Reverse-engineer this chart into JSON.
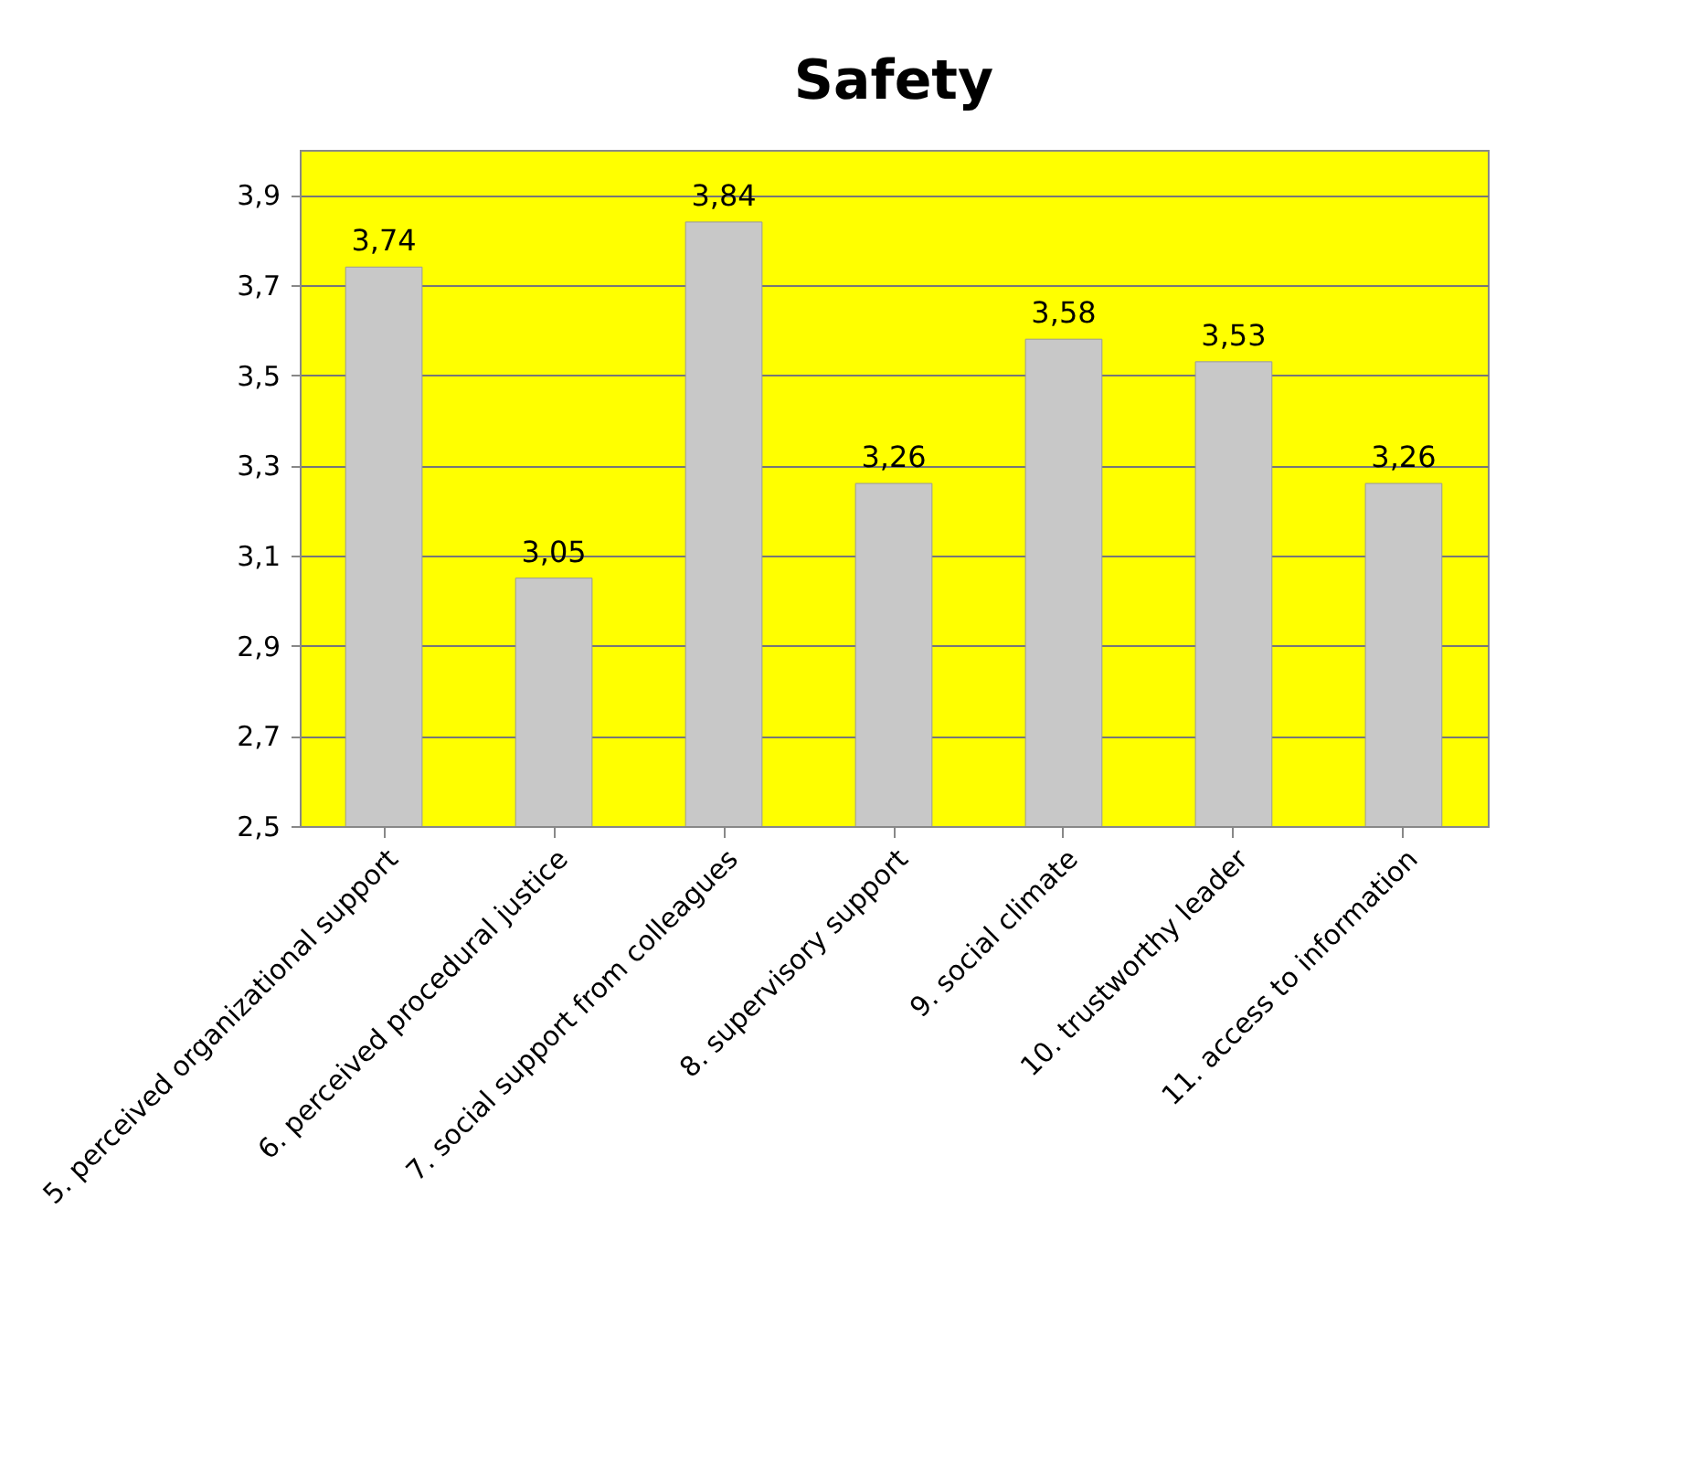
{
  "chart_data": {
    "type": "bar",
    "title": "Safety",
    "categories": [
      "5. perceived organizational support",
      "6. perceived procedural justice",
      "7. social support from colleagues",
      "8. supervisory support",
      "9. social climate",
      "10. trustworthy leader",
      "11. access to information"
    ],
    "values": [
      3.74,
      3.05,
      3.84,
      3.26,
      3.58,
      3.53,
      3.26
    ],
    "value_labels": [
      "3,74",
      "3,05",
      "3,84",
      "3,26",
      "3,58",
      "3,53",
      "3,26"
    ],
    "color": "#c8c8c8",
    "ylim": [
      2.5,
      4.0
    ],
    "yticks": [
      {
        "value": 2.5,
        "label": "2,5"
      },
      {
        "value": 2.7,
        "label": "2,7"
      },
      {
        "value": 2.9,
        "label": "2,9"
      },
      {
        "value": 3.1,
        "label": "3,1"
      },
      {
        "value": 3.3,
        "label": "3,3"
      },
      {
        "value": 3.5,
        "label": "3,5"
      },
      {
        "value": 3.7,
        "label": "3,7"
      },
      {
        "value": 3.9,
        "label": "3,9"
      }
    ],
    "grid": "y"
  }
}
